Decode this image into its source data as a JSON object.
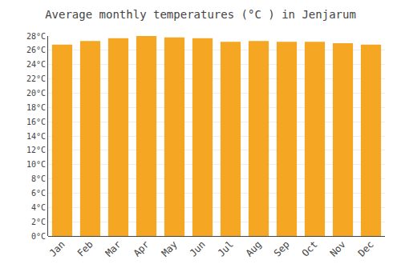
{
  "chart_data": {
    "type": "bar",
    "title": "Average monthly temperatures (°C ) in Jenjarum",
    "categories": [
      "Jan",
      "Feb",
      "Mar",
      "Apr",
      "May",
      "Jun",
      "Jul",
      "Aug",
      "Sep",
      "Oct",
      "Nov",
      "Dec"
    ],
    "values": [
      26.8,
      27.3,
      27.7,
      28.0,
      27.8,
      27.7,
      27.2,
      27.3,
      27.2,
      27.2,
      27.0,
      26.8
    ],
    "color": "#F5A623",
    "ylim": [
      0,
      28
    ],
    "yticks": [
      {
        "value": 0,
        "label": "0°C"
      },
      {
        "value": 2,
        "label": "2°C"
      },
      {
        "value": 4,
        "label": "4°C"
      },
      {
        "value": 6,
        "label": "6°C"
      },
      {
        "value": 8,
        "label": "8°C"
      },
      {
        "value": 10,
        "label": "10°C"
      },
      {
        "value": 12,
        "label": "12°C"
      },
      {
        "value": 14,
        "label": "14°C"
      },
      {
        "value": 16,
        "label": "16°C"
      },
      {
        "value": 18,
        "label": "18°C"
      },
      {
        "value": 20,
        "label": "20°C"
      },
      {
        "value": 22,
        "label": "22°C"
      },
      {
        "value": 24,
        "label": "24°C"
      },
      {
        "value": 26,
        "label": "26°C"
      },
      {
        "value": 28,
        "label": "28°C"
      }
    ],
    "grid": true
  }
}
